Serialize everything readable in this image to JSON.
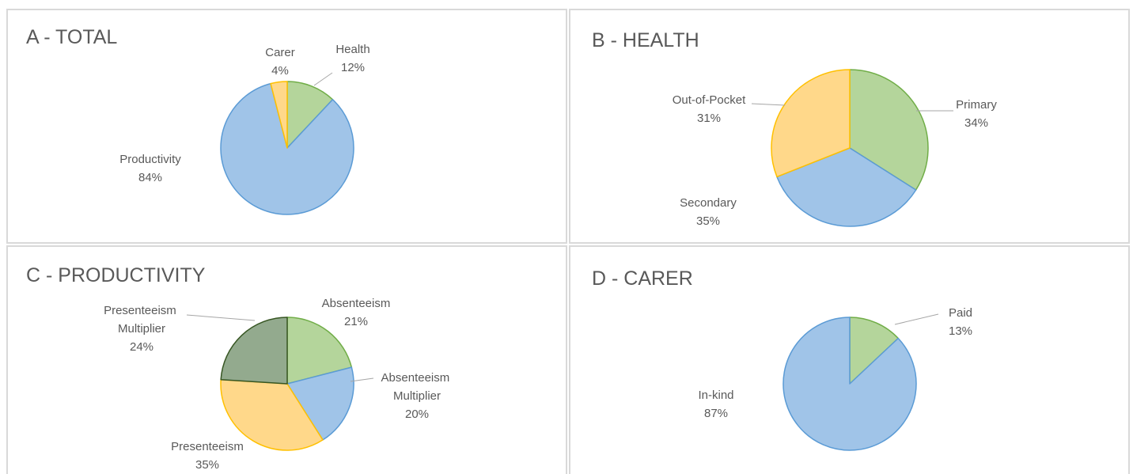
{
  "chart_data": [
    {
      "type": "pie",
      "title": "A - TOTAL",
      "categories": [
        "Health",
        "Productivity",
        "Carer"
      ],
      "values": [
        12,
        84,
        4
      ],
      "value_labels": [
        "12%",
        "84%",
        "4%"
      ],
      "colors": [
        "#b4d59b",
        "#a0c4e8",
        "#ffd88a"
      ]
    },
    {
      "type": "pie",
      "title": "B - HEALTH",
      "categories": [
        "Primary",
        "Secondary",
        "Out-of-Pocket"
      ],
      "values": [
        34,
        35,
        31
      ],
      "value_labels": [
        "34%",
        "35%",
        "31%"
      ],
      "colors": [
        "#b4d59b",
        "#a0c4e8",
        "#ffd88a"
      ]
    },
    {
      "type": "pie",
      "title": "C - PRODUCTIVITY",
      "categories": [
        "Absenteeism",
        "Absenteeism Multiplier",
        "Presenteeism",
        "Presenteeism Multiplier"
      ],
      "values": [
        21,
        20,
        35,
        24
      ],
      "value_labels": [
        "21%",
        "20%",
        "35%",
        "24%"
      ],
      "colors": [
        "#b4d59b",
        "#a0c4e8",
        "#ffd88a",
        "#93aa8e"
      ]
    },
    {
      "type": "pie",
      "title": "D - CARER",
      "categories": [
        "Paid",
        "In-kind"
      ],
      "values": [
        13,
        87
      ],
      "value_labels": [
        "13%",
        "87%"
      ],
      "colors": [
        "#b4d59b",
        "#a0c4e8"
      ]
    }
  ]
}
